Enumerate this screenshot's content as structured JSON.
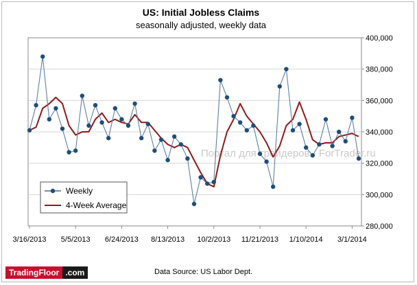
{
  "chart_data": {
    "type": "line",
    "title": "US: Initial Jobless Claims",
    "subtitle": "seasonally  adjusted,  weekly data",
    "source": "Data Source: US Labor Dept.",
    "watermark": "Портал для трейдеров - ForTrader.ru",
    "x_tick_labels": [
      "3/16/2013",
      "5/5/2013",
      "6/24/2013",
      "8/13/2013",
      "10/2/2013",
      "11/21/2013",
      "1/10/2014",
      "3/1/2014"
    ],
    "y_tick_labels": [
      "280,000",
      "300,000",
      "320,000",
      "340,000",
      "360,000",
      "380,000",
      "400,000"
    ],
    "ylim": [
      280000,
      400000
    ],
    "y_axis_position": "right",
    "grid": "horizontal",
    "legend_position": "bottom-left",
    "series": [
      {
        "name": "Weekly",
        "color": "#1f4e79",
        "marker": "circle",
        "values": [
          341000,
          357000,
          388000,
          348000,
          355000,
          342000,
          327000,
          328000,
          363000,
          344000,
          357000,
          346000,
          336000,
          355000,
          348000,
          344000,
          358000,
          336000,
          345000,
          328000,
          335000,
          322000,
          337000,
          332000,
          323000,
          294000,
          311000,
          307000,
          308000,
          373000,
          362000,
          350000,
          346000,
          341000,
          344000,
          326000,
          321000,
          305000,
          369000,
          380000,
          341000,
          345000,
          330000,
          325000,
          332000,
          348000,
          331000,
          340000,
          334000,
          349000,
          323000
        ]
      },
      {
        "name": "4-Week Average",
        "color": "#8b1a1a",
        "marker": "none",
        "values": [
          341000,
          343000,
          355000,
          358000,
          362000,
          358000,
          344000,
          338000,
          340000,
          340000,
          348000,
          352000,
          346000,
          348000,
          346000,
          345000,
          351000,
          346000,
          346000,
          341000,
          336000,
          332000,
          330000,
          332000,
          330000,
          322000,
          314000,
          307000,
          305000,
          325000,
          340000,
          348000,
          358000,
          350000,
          345000,
          340000,
          333000,
          324000,
          331000,
          344000,
          348000,
          359000,
          348000,
          335000,
          332000,
          333000,
          333000,
          337000,
          338000,
          339000,
          337000
        ]
      }
    ]
  },
  "logo": {
    "left": "TradingFloor",
    "right": ".com"
  }
}
